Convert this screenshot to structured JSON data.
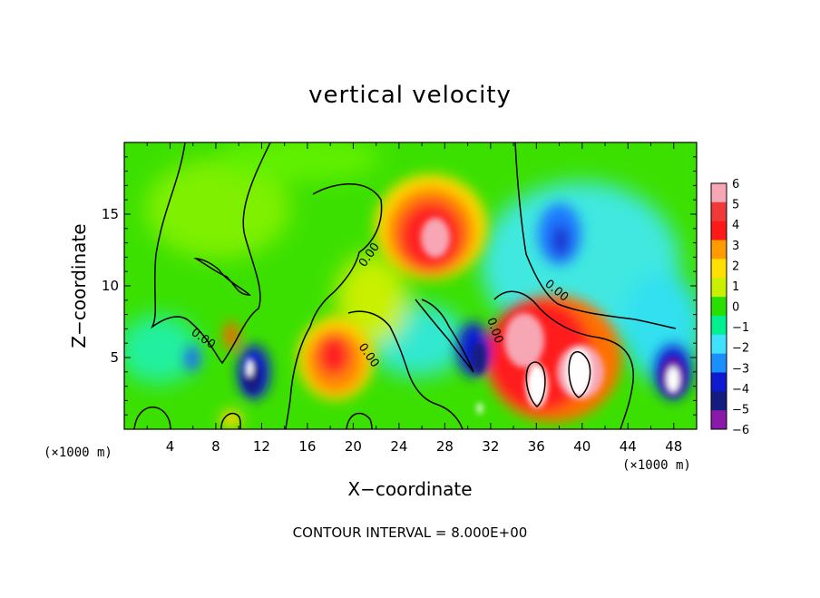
{
  "chart_data": {
    "type": "heatmap",
    "title": "vertical velocity",
    "xlabel": "X−coordinate",
    "ylabel": "Z−coordinate",
    "x_unit_label": "(×1000 m)",
    "y_unit_label": "(×1000 m)",
    "footnote": "CONTOUR INTERVAL = 8.000E+00",
    "xlim": [
      0,
      50
    ],
    "ylim": [
      0,
      20
    ],
    "x_ticks": [
      4,
      8,
      12,
      16,
      20,
      24,
      28,
      32,
      36,
      40,
      44,
      48
    ],
    "y_ticks": [
      5,
      10,
      15
    ],
    "contour_label": "0.00",
    "colorbar": {
      "ticks": [
        "6",
        "5",
        "4",
        "3",
        "2",
        "1",
        "0",
        "−1",
        "−2",
        "−3",
        "−4",
        "−5",
        "−6"
      ],
      "levels": [
        6,
        5,
        4,
        3,
        2,
        1,
        0,
        -1,
        -2,
        -3,
        -4,
        -5,
        -6
      ],
      "colors": [
        "#f7a6b4",
        "#f03a3a",
        "#ff1a1a",
        "#ff9a00",
        "#ffe000",
        "#c8f000",
        "#28e000",
        "#00f090",
        "#40e0ff",
        "#1a90ff",
        "#0f1ad0",
        "#141c80",
        "#8a18a8"
      ]
    },
    "cells": [
      {
        "x": 5.5,
        "z": 4.2,
        "w": -3.0
      },
      {
        "x": 9.5,
        "z": 6.5,
        "w": 4.5
      },
      {
        "x": 10.8,
        "z": 3.8,
        "w": -5.5
      },
      {
        "x": 18.5,
        "z": 5.0,
        "w": 5.0
      },
      {
        "x": 22.5,
        "z": 5.0,
        "w": -2.5
      },
      {
        "x": 26.5,
        "z": 13.5,
        "w": 5.0
      },
      {
        "x": 30.0,
        "z": 5.5,
        "w": -4.5
      },
      {
        "x": 34.5,
        "z": 6.0,
        "w": 6.0
      },
      {
        "x": 39.5,
        "z": 4.5,
        "w": 6.0
      },
      {
        "x": 37.0,
        "z": 14.0,
        "w": -4.0
      },
      {
        "x": 47.5,
        "z": 4.5,
        "w": -6.0
      }
    ]
  }
}
